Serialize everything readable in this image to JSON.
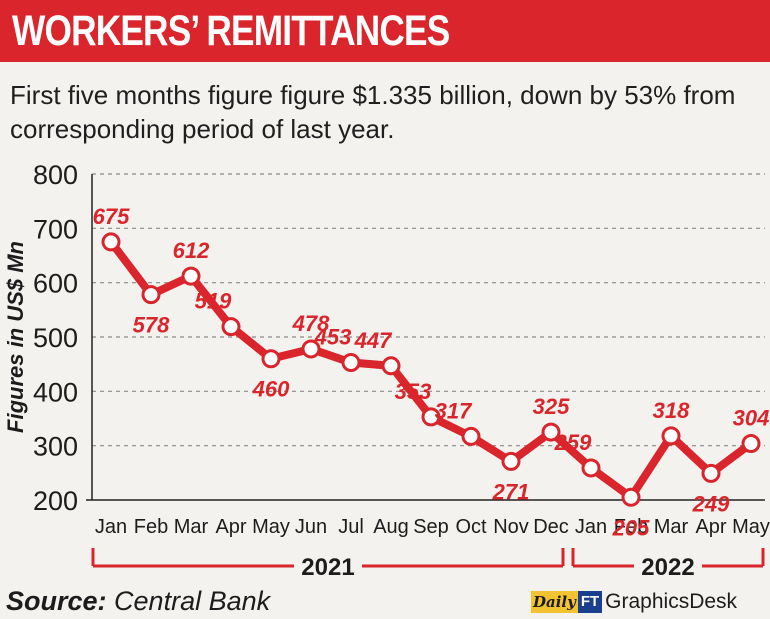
{
  "header": {
    "title": "WORKERS’ REMITTANCES",
    "subtitle": "First five months figure figure $1.335 billion, down by 53% from corresponding period of last year."
  },
  "footer": {
    "source_label": "Source:",
    "source_value": "Central Bank",
    "credit_logo": "Daily",
    "credit_ft": "FT",
    "credit_desk": "GraphicsDesk"
  },
  "colors": {
    "accent": "#d9252b",
    "background": "#f4f2ef",
    "text": "#1c1c1c",
    "grid": "#8a8a8a"
  },
  "chart_data": {
    "type": "line",
    "title": "WORKERS’ REMITTANCES",
    "subtitle": "First five months figure figure $1.335 billion, down by 53% from corresponding period of last year.",
    "xlabel": "",
    "ylabel": "Figures in US$ Mn",
    "ylim": [
      200,
      800
    ],
    "yticks": [
      200,
      300,
      400,
      500,
      600,
      700,
      800
    ],
    "grid": true,
    "categories": [
      "Jan",
      "Feb",
      "Mar",
      "Apr",
      "May",
      "Jun",
      "Jul",
      "Aug",
      "Sep",
      "Oct",
      "Nov",
      "Dec",
      "Jan",
      "Feb",
      "Mar",
      "Apr",
      "May"
    ],
    "values": [
      675,
      578,
      612,
      519,
      460,
      478,
      453,
      447,
      353,
      317,
      271,
      325,
      259,
      205,
      318,
      249,
      304
    ],
    "point_labels": [
      "675",
      "578",
      "612",
      "519",
      "460",
      "478",
      "453",
      "447",
      "353",
      "317",
      "271",
      "325",
      "259",
      "205",
      "318",
      "249",
      "304"
    ],
    "year_groups": [
      {
        "label": "2021",
        "first_index": 0,
        "last_index": 11
      },
      {
        "label": "2022",
        "first_index": 12,
        "last_index": 16
      }
    ]
  }
}
